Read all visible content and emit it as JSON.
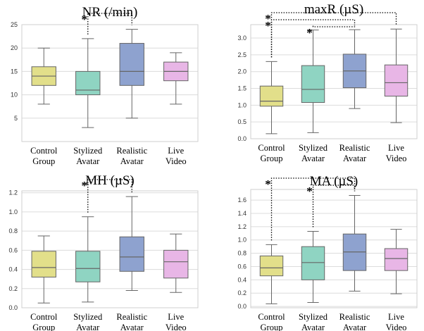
{
  "chart_data": [
    {
      "type": "box",
      "title": "NR (/min)",
      "categories": [
        "Control\nGroup",
        "Stylized\nAvatar",
        "Realistic\nAvatar",
        "Live\nVideo"
      ],
      "ylim": [
        0,
        25
      ],
      "yticks": [
        5,
        10,
        15,
        20,
        25
      ],
      "boxes": [
        {
          "min": 8,
          "q1": 12,
          "median": 14,
          "q3": 16,
          "max": 20,
          "color": "#e2df8a"
        },
        {
          "min": 3,
          "q1": 10,
          "median": 11,
          "q3": 15,
          "max": 22,
          "color": "#8fd4c2"
        },
        {
          "min": 5,
          "q1": 12,
          "median": 15,
          "q3": 21,
          "max": 24,
          "color": "#8ea2cf"
        },
        {
          "min": 8,
          "q1": 13,
          "median": 15,
          "q3": 17,
          "max": 19,
          "color": "#e8b6e6"
        }
      ],
      "significance": [
        {
          "from": 1,
          "to": 2,
          "label": "*"
        }
      ],
      "grid": true
    },
    {
      "type": "box",
      "title": "maxR (µS)",
      "categories": [
        "Control\nGroup",
        "Stylized\nAvatar",
        "Realistic\nAvatar",
        "Live\nVideo"
      ],
      "ylim": [
        0,
        3.4
      ],
      "yticks": [
        0.0,
        0.5,
        1.0,
        1.5,
        2.0,
        2.5,
        3.0
      ],
      "boxes": [
        {
          "min": 0.15,
          "q1": 0.97,
          "median": 1.12,
          "q3": 1.57,
          "max": 2.3,
          "color": "#e2df8a"
        },
        {
          "min": 0.18,
          "q1": 1.08,
          "median": 1.47,
          "q3": 2.18,
          "max": 3.24,
          "color": "#8fd4c2"
        },
        {
          "min": 0.9,
          "q1": 1.52,
          "median": 2.02,
          "q3": 2.52,
          "max": 3.25,
          "color": "#8ea2cf"
        },
        {
          "min": 0.48,
          "q1": 1.27,
          "median": 1.67,
          "q3": 2.2,
          "max": 3.27,
          "color": "#e8b6e6"
        }
      ],
      "significance": [
        {
          "from": 0,
          "to": 3,
          "label": "*"
        },
        {
          "from": 0,
          "to": 2,
          "label": "*"
        },
        {
          "from": 1,
          "to": 2,
          "label": "*"
        }
      ],
      "grid": true
    },
    {
      "type": "box",
      "title": "MH (µS)",
      "categories": [
        "Control\nGroup",
        "Stylized\nAvatar",
        "Realistic\nAvatar",
        "Live\nVideo"
      ],
      "ylim": [
        0,
        1.22
      ],
      "yticks": [
        0.0,
        0.2,
        0.4,
        0.6,
        0.8,
        1.0,
        1.2
      ],
      "boxes": [
        {
          "min": 0.05,
          "q1": 0.32,
          "median": 0.42,
          "q3": 0.59,
          "max": 0.75,
          "color": "#e2df8a"
        },
        {
          "min": 0.06,
          "q1": 0.27,
          "median": 0.41,
          "q3": 0.59,
          "max": 0.95,
          "color": "#8fd4c2"
        },
        {
          "min": 0.18,
          "q1": 0.38,
          "median": 0.53,
          "q3": 0.74,
          "max": 1.16,
          "color": "#8ea2cf"
        },
        {
          "min": 0.16,
          "q1": 0.31,
          "median": 0.48,
          "q3": 0.6,
          "max": 0.77,
          "color": "#e8b6e6"
        }
      ],
      "significance": [
        {
          "from": 1,
          "to": 2,
          "label": "*"
        }
      ],
      "grid": true
    },
    {
      "type": "box",
      "title": "MA (µS)",
      "categories": [
        "Control\nGroup",
        "Stylized\nAvatar",
        "Realistic\nAvatar",
        "Live\nVideo"
      ],
      "ylim": [
        -0.02,
        1.76
      ],
      "yticks": [
        0.0,
        0.2,
        0.4,
        0.6,
        0.8,
        1.0,
        1.2,
        1.4,
        1.6
      ],
      "boxes": [
        {
          "min": 0.04,
          "q1": 0.46,
          "median": 0.58,
          "q3": 0.76,
          "max": 0.93,
          "color": "#e2df8a"
        },
        {
          "min": 0.06,
          "q1": 0.4,
          "median": 0.66,
          "q3": 0.9,
          "max": 1.13,
          "color": "#8fd4c2"
        },
        {
          "min": 0.23,
          "q1": 0.54,
          "median": 0.82,
          "q3": 1.09,
          "max": 1.67,
          "color": "#8ea2cf"
        },
        {
          "min": 0.19,
          "q1": 0.54,
          "median": 0.72,
          "q3": 0.87,
          "max": 1.16,
          "color": "#e8b6e6"
        }
      ],
      "significance": [
        {
          "from": 0,
          "to": 2,
          "label": "*"
        },
        {
          "from": 1,
          "to": 2,
          "label": "*"
        }
      ],
      "grid": true
    }
  ]
}
